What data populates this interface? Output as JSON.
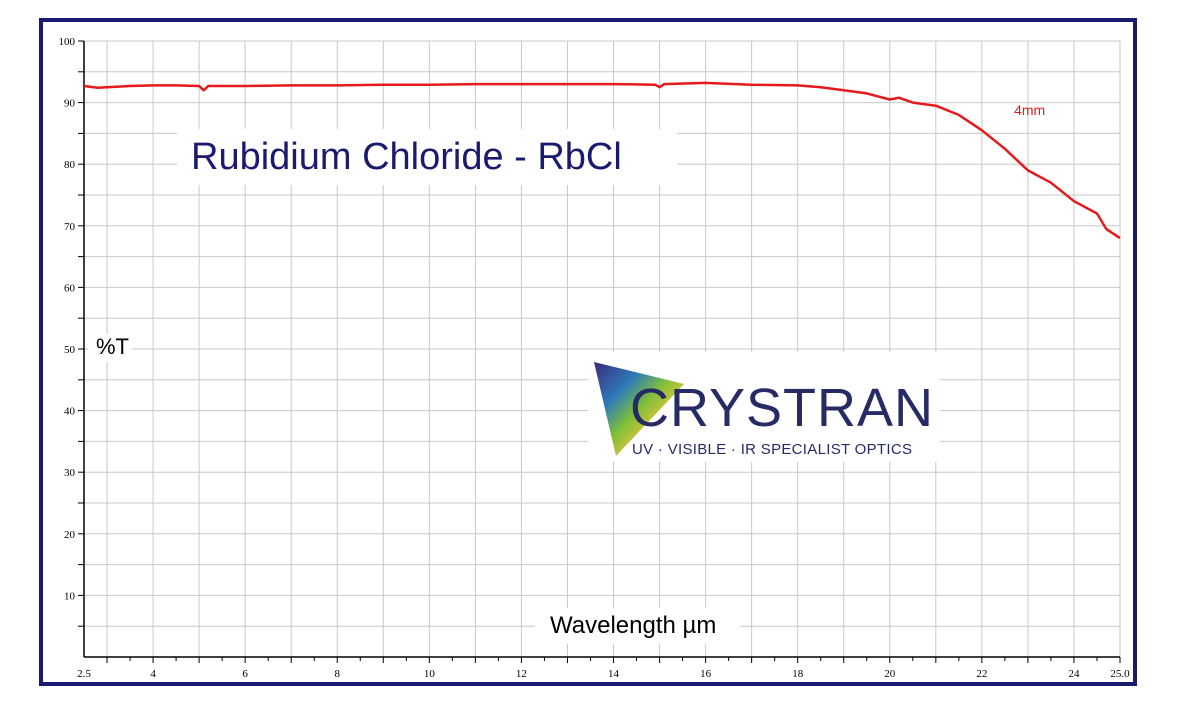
{
  "chart_data": {
    "type": "line",
    "title": "Rubidium Chloride - RbCl",
    "xlabel": "Wavelength µm",
    "ylabel": "%T",
    "xlim": [
      2.5,
      25.0
    ],
    "ylim": [
      0,
      100
    ],
    "x_ticks": [
      2.5,
      4,
      6,
      8,
      10,
      12,
      14,
      16,
      18,
      20,
      22,
      24,
      25.0
    ],
    "x_tick_labels": [
      "2.5",
      "4",
      "6",
      "8",
      "10",
      "12",
      "14",
      "16",
      "18",
      "20",
      "22",
      "24",
      "25.0"
    ],
    "y_ticks": [
      10,
      20,
      30,
      40,
      50,
      60,
      70,
      80,
      90,
      100
    ],
    "y_tick_labels": [
      "10",
      "20",
      "30",
      "40",
      "50",
      "60",
      "70",
      "80",
      "90",
      "100"
    ],
    "grid": true,
    "series": [
      {
        "name": "4mm",
        "color": "#e41a1c",
        "x": [
          2.5,
          2.8,
          3.0,
          3.5,
          4.0,
          4.5,
          5.0,
          5.1,
          5.2,
          6.0,
          7.0,
          8.0,
          9.0,
          10.0,
          11.0,
          12.0,
          13.0,
          14.0,
          14.9,
          15.0,
          15.1,
          16.0,
          17.0,
          18.0,
          18.5,
          19.0,
          19.5,
          20.0,
          20.2,
          20.5,
          21.0,
          21.5,
          22.0,
          22.5,
          23.0,
          23.5,
          24.0,
          24.5,
          24.7,
          25.0
        ],
        "y": [
          92.7,
          92.4,
          92.5,
          92.7,
          92.8,
          92.8,
          92.7,
          92.0,
          92.7,
          92.7,
          92.8,
          92.8,
          92.9,
          92.9,
          93.0,
          93.0,
          93.0,
          93.0,
          92.9,
          92.5,
          93.0,
          93.2,
          92.9,
          92.8,
          92.5,
          92.0,
          91.5,
          90.5,
          90.8,
          90.0,
          89.5,
          88.0,
          85.5,
          82.5,
          79.0,
          77.0,
          74.0,
          72.0,
          69.5,
          68.0
        ]
      }
    ],
    "annotations": [
      {
        "text": "4mm",
        "x": 22.7,
        "y": 88.0,
        "color": "#e41a1c"
      }
    ]
  },
  "branding": {
    "name": "CRYSTRAN",
    "tagline": "UV · VISIBLE · IR SPECIALIST OPTICS",
    "color": "#262b66"
  },
  "frame_color": "#1a1a6e",
  "grid_color": "#c8c8c8"
}
